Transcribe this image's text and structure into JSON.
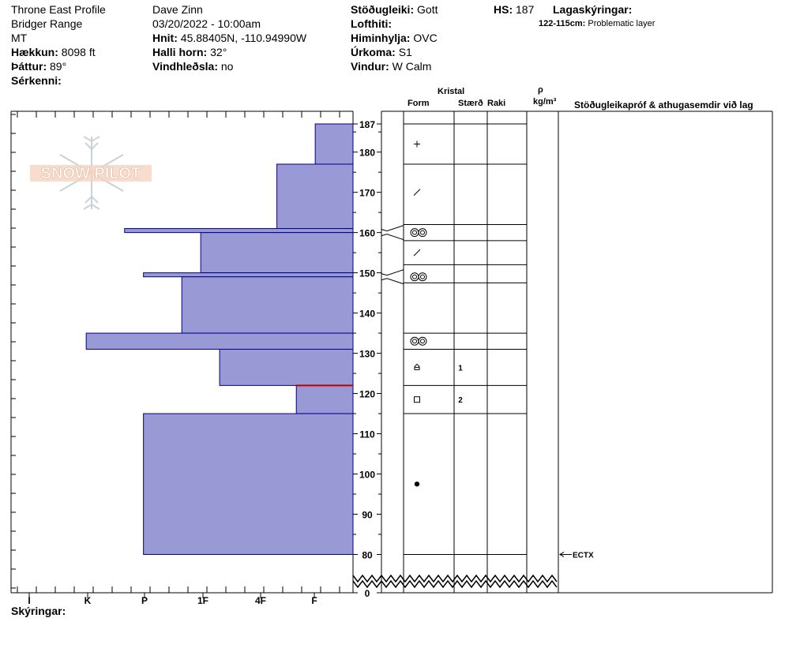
{
  "header": {
    "site": "Throne East Profile",
    "range": "Bridger Range",
    "state": "MT",
    "elevation_label": "Hækkun:",
    "elevation_value": "8098 ft",
    "aspect_label": "Þáttur:",
    "aspect_value": "89°",
    "features_label": "Sérkenni:",
    "observer": "Dave Zinn",
    "datetime": "03/20/2022 - 10:00am",
    "coords_label": "Hnit:",
    "coords_value": "45.88405N, -110.94990W",
    "slope_label": "Halli horn:",
    "slope_value": "32°",
    "wind_loading_label": "Vindhleðsla:",
    "wind_loading_value": "no",
    "stability_label": "Stöðugleiki:",
    "stability_value": "Gott",
    "air_temp_label": "Lofthiti:",
    "sky_label": "Himinhylja:",
    "sky_value": "OVC",
    "precip_label": "Úrkoma:",
    "precip_value": "S1",
    "wind_label": "Vindur:",
    "wind_value": "W Calm",
    "hs_label": "HS:",
    "hs_value": "187",
    "layer_notes_label": "Lagaskýringar:",
    "layer_note_range": "122-115cm:",
    "layer_note_text": "Problematic layer"
  },
  "logo_text": "SNOW PILOT",
  "column_headers": {
    "crystal": "Kristal",
    "form": "Form",
    "size": "Stærð",
    "moisture": "Raki",
    "rho": "ρ",
    "density_unit": "kg/m³",
    "tests": "Stöðugleikapróf & athugasemdir við lag"
  },
  "footer_label": "Skýringar:",
  "colors": {
    "hardness_fill": "#9999d6",
    "hardness_stroke": "#00008b",
    "problem_line": "#c00000"
  },
  "chart_data": {
    "type": "bar",
    "orientation": "horizontal",
    "x_categories": [
      "I",
      "K",
      "P",
      "1F",
      "4F",
      "F"
    ],
    "y_ticks": [
      187,
      180,
      170,
      160,
      150,
      140,
      130,
      120,
      110,
      100,
      90,
      80,
      0
    ],
    "ylim": [
      0,
      187
    ],
    "y_break": [
      0,
      78
    ],
    "layers": [
      {
        "top": 187,
        "bottom": 177,
        "hardness": 0.66
      },
      {
        "top": 177,
        "bottom": 161,
        "hardness": 1.33
      },
      {
        "top": 161,
        "bottom": 160,
        "hardness": 3.99
      },
      {
        "top": 160,
        "bottom": 150,
        "hardness": 2.66
      },
      {
        "top": 150,
        "bottom": 149,
        "hardness": 3.66
      },
      {
        "top": 149,
        "bottom": 135,
        "hardness": 2.99
      },
      {
        "top": 135,
        "bottom": 131,
        "hardness": 4.66
      },
      {
        "top": 131,
        "bottom": 122,
        "hardness": 2.33
      },
      {
        "top": 122,
        "bottom": 115,
        "hardness": 0.99
      },
      {
        "top": 115,
        "bottom": 80,
        "hardness": 3.66
      }
    ],
    "problem_layer_depth": 122,
    "crystals": [
      {
        "depth": 182,
        "form": "plus"
      },
      {
        "depth": 170,
        "form": "slash"
      },
      {
        "depth": 160,
        "form": "surface-hoar"
      },
      {
        "depth": 155,
        "form": "slash"
      },
      {
        "depth": 149,
        "form": "surface-hoar"
      },
      {
        "depth": 133,
        "form": "surface-hoar"
      },
      {
        "depth": 126.5,
        "form": "cup",
        "size": "1"
      },
      {
        "depth": 118.5,
        "form": "square",
        "size": "2"
      },
      {
        "depth": 97.5,
        "form": "dot"
      }
    ],
    "boundaries": [
      187,
      177,
      162,
      158,
      152,
      147.5,
      135,
      131,
      122,
      115,
      80
    ],
    "fan_layers": [
      160,
      149
    ],
    "test_marker": {
      "depth": 80,
      "label": "ECTX"
    }
  }
}
